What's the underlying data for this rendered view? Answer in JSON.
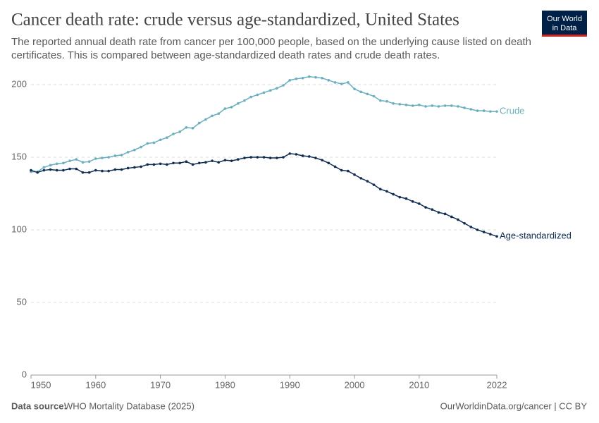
{
  "chart_data": {
    "type": "line",
    "title": "Cancer death rate: crude versus age-standardized, United States",
    "subtitle": [
      "The reported annual death rate from cancer per 100,000 people, based on the underlying cause listed on death",
      "certificates. This is compared between age-standardized death rates and crude death rates."
    ],
    "logo": [
      "Our World",
      "in Data"
    ],
    "source_label": "Data source:",
    "source": "WHO Mortality Database (2025)",
    "credit": "OurWorldinData.org/cancer | CC BY",
    "x": [
      1950,
      1951,
      1952,
      1953,
      1954,
      1955,
      1956,
      1957,
      1958,
      1959,
      1960,
      1961,
      1962,
      1963,
      1964,
      1965,
      1966,
      1967,
      1968,
      1969,
      1970,
      1971,
      1972,
      1973,
      1974,
      1975,
      1976,
      1977,
      1978,
      1979,
      1980,
      1981,
      1982,
      1983,
      1984,
      1985,
      1986,
      1987,
      1988,
      1989,
      1990,
      1991,
      1992,
      1993,
      1994,
      1995,
      1996,
      1997,
      1998,
      1999,
      2000,
      2001,
      2002,
      2003,
      2004,
      2005,
      2006,
      2007,
      2008,
      2009,
      2010,
      2011,
      2012,
      2013,
      2014,
      2015,
      2016,
      2017,
      2018,
      2019,
      2020,
      2021,
      2022
    ],
    "series": [
      {
        "name": "Crude",
        "color": "#6aafbd",
        "values": [
          140,
          140,
          143,
          144.5,
          145.5,
          146,
          147.5,
          148.5,
          146.5,
          147,
          149,
          149.5,
          150,
          151,
          151.5,
          153.5,
          155,
          157,
          159.5,
          160,
          162,
          163.5,
          166,
          167.5,
          170.5,
          170,
          173.5,
          176,
          178.5,
          180,
          183.5,
          184.5,
          187,
          189,
          191.5,
          193,
          194.5,
          196,
          197.5,
          199.5,
          203,
          204,
          204.5,
          205.5,
          205,
          204.5,
          203,
          201.5,
          200.5,
          201.5,
          197,
          195,
          193.5,
          192,
          189,
          188.5,
          187,
          186.5,
          186,
          185.5,
          186,
          185,
          185.5,
          185,
          185.5,
          185.5,
          185,
          184,
          183,
          182,
          182,
          181.5,
          181.5
        ]
      },
      {
        "name": "Age-standardized",
        "color": "#0f2d52",
        "values": [
          141,
          139.5,
          141,
          141.5,
          141,
          141,
          142,
          142,
          139.5,
          139.5,
          141,
          140.5,
          140.5,
          141.5,
          141.5,
          142.5,
          143,
          143.5,
          145,
          145,
          145.5,
          145,
          146,
          146,
          147,
          145,
          146,
          146.5,
          147.5,
          146.5,
          148,
          147.5,
          148.5,
          149.5,
          150,
          150,
          150,
          149.5,
          149.5,
          150,
          152.5,
          152,
          151,
          150.5,
          149.5,
          148,
          146,
          143.5,
          141,
          140.5,
          138,
          135.5,
          133.5,
          131,
          128,
          126.5,
          124.5,
          122.5,
          121.5,
          119.5,
          118,
          115.5,
          114,
          112,
          111,
          109,
          107,
          104.5,
          102,
          100,
          98.5,
          97,
          95.5
        ]
      }
    ],
    "xlim": [
      1950,
      2022
    ],
    "xticks": [
      1950,
      1960,
      1970,
      1980,
      1990,
      2000,
      2010,
      2022
    ],
    "ylim": [
      0,
      207
    ],
    "yticks": [
      0,
      50,
      100,
      150,
      200
    ],
    "grid": true
  }
}
